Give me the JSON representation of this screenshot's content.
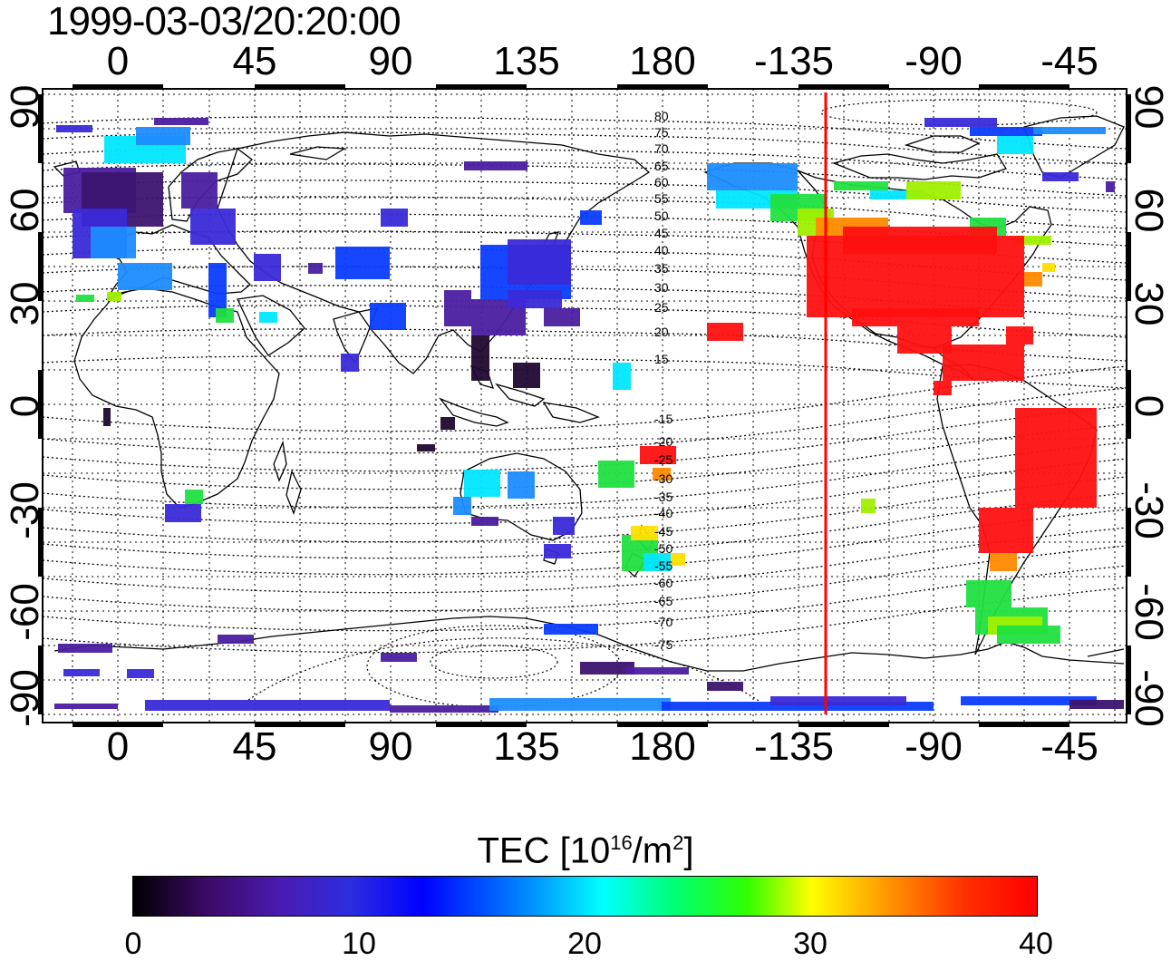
{
  "timestamp": "1999-03-03/20:20:00",
  "longitude_ticks": [
    "0",
    "45",
    "90",
    "135",
    "180",
    "-135",
    "-90",
    "-45"
  ],
  "latitude_ticks": [
    "90",
    "60",
    "30",
    "0",
    "-30",
    "-60",
    "-90"
  ],
  "contour_labels_north": [
    "80",
    "75",
    "70",
    "65",
    "60",
    "55",
    "50",
    "45",
    "40",
    "35",
    "30",
    "25",
    "20",
    "15"
  ],
  "contour_labels_south": [
    "-15",
    "-20",
    "-25",
    "-30",
    "-35",
    "-40",
    "-45",
    "-50",
    "-55",
    "-60",
    "-65",
    "-70",
    "-75"
  ],
  "colorbar": {
    "title_main": "TEC  [10",
    "title_sup1": "16",
    "title_mid": "/m",
    "title_sup2": "2",
    "title_end": "]",
    "ticks": [
      "0",
      "10",
      "20",
      "30",
      "40"
    ],
    "min": 0,
    "max": 40
  },
  "map": {
    "projection": "equirectangular",
    "lon_range": [
      -20,
      340
    ],
    "lat_range": [
      -90,
      90
    ],
    "terminator_longitude": -125,
    "grid": "dotted",
    "colors": {
      "terminator": "#ff0000",
      "frame": "#000000"
    }
  }
}
